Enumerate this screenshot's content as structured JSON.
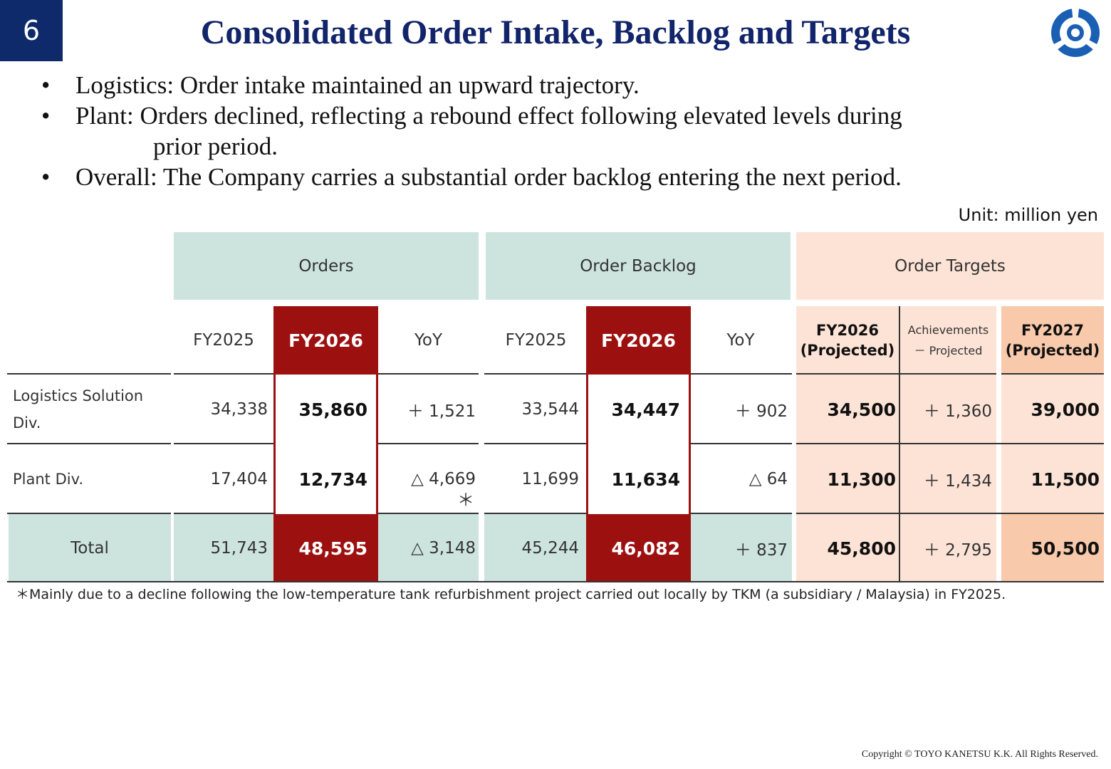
{
  "page_number": "6",
  "title": "Consolidated Order Intake, Backlog and Targets",
  "bullets": [
    {
      "label": "Logistics:",
      "text": "Order intake maintained an upward trajectory."
    },
    {
      "label": "Plant:",
      "text": "Orders declined, reflecting a rebound effect following elevated levels during",
      "cont": "prior period."
    },
    {
      "label": "Overall:",
      "text": "The Company carries a substantial order backlog entering the next period."
    }
  ],
  "unit": "Unit: million yen",
  "table": {
    "groups": {
      "orders": "Orders",
      "backlog": "Order Backlog",
      "targets": "Order Targets"
    },
    "subheaders": {
      "orders": [
        "FY2025",
        "FY2026",
        "YoY"
      ],
      "backlog": [
        "FY2025",
        "FY2026",
        "YoY"
      ],
      "targets_fy2026": [
        "FY2026",
        "(Projected)"
      ],
      "targets_diff": [
        "Achievements",
        "－ Projected"
      ],
      "targets_fy2027": [
        "FY2027",
        "(Projected)"
      ]
    },
    "rows": [
      {
        "label": "Logistics Solution Div.",
        "orders": [
          "34,338",
          "35,860",
          "＋ 1,521"
        ],
        "backlog": [
          "33,544",
          "34,447",
          "＋ 902"
        ],
        "targets": [
          "34,500",
          "＋ 1,360",
          "39,000"
        ]
      },
      {
        "label": "Plant Div.",
        "orders": [
          "17,404",
          "12,734",
          "△ 4,669"
        ],
        "orders_note": "＊",
        "backlog": [
          "11,699",
          "11,634",
          "△ 64"
        ],
        "targets": [
          "11,300",
          "＋ 1,434",
          "11,500"
        ]
      },
      {
        "label": "Total",
        "orders": [
          "51,743",
          "48,595",
          "△ 3,148"
        ],
        "backlog": [
          "45,244",
          "46,082",
          "＋ 837"
        ],
        "targets": [
          "45,800",
          "＋ 2,795",
          "50,500"
        ]
      }
    ]
  },
  "footnote": "＊Mainly due to a decline following the low-temperature tank refurbishment project carried out locally by TKM (a subsidiary / Malaysia) in FY2025.",
  "copyright": "Copyright ©  TOYO KANETSU K.K. All Rights Reserved.",
  "colors": {
    "navy": "#0e2a6b",
    "highlight_red": "#9d1010",
    "teal_band": "#cde4de",
    "peach_band": "#fde3d6",
    "peach_dark": "#f8c9aa"
  }
}
